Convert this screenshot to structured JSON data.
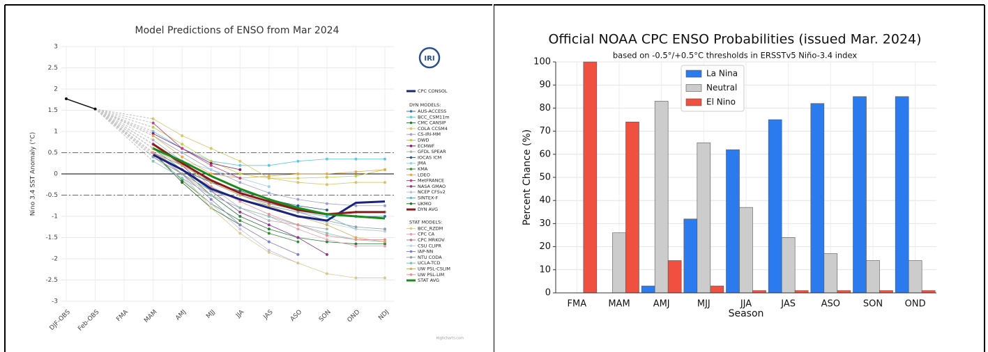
{
  "chart_data": [
    {
      "type": "line",
      "title": "Model Predictions of ENSO from Mar 2024",
      "y_label": "Nino 3.4 SST Anomaly (°C)",
      "logo": "IRI",
      "credit": "Highcharts.com",
      "categories": [
        "DJF-OBS",
        "Feb-OBS",
        "FMA",
        "MAM",
        "AMJ",
        "MJJ",
        "JJA",
        "JAS",
        "ASO",
        "SON",
        "OND",
        "NDJ"
      ],
      "ylim": [
        -3,
        3
      ],
      "yticks": [
        -3,
        -2.5,
        -2,
        -1.5,
        -1,
        -0.5,
        0,
        0.5,
        1,
        1.5,
        2,
        2.5,
        3
      ],
      "grid": true,
      "hlines": [
        {
          "value": 0,
          "style": "solid"
        },
        {
          "value": 0.5,
          "style": "dashdot"
        },
        {
          "value": -0.5,
          "style": "dashdot"
        }
      ],
      "observed": {
        "color": "#111111",
        "values": [
          1.77,
          1.53,
          null,
          null,
          null,
          null,
          null,
          null,
          null,
          null,
          null,
          null
        ]
      },
      "series": [
        {
          "name": "CPC CONSOL",
          "color": "#1a237e",
          "emphasis": true,
          "values": [
            null,
            null,
            null,
            0.45,
            0.1,
            -0.35,
            -0.6,
            -0.8,
            -1.0,
            -1.1,
            -0.68,
            -0.65
          ]
        }
      ],
      "groups": [
        {
          "title": "DYN MODELS:",
          "series": [
            {
              "name": "AUS-ACCESS",
              "color": "#3a6fb0",
              "values": [
                null,
                null,
                null,
                0.7,
                0.3,
                -0.2,
                -0.5,
                -0.7,
                -0.85,
                -0.95,
                -1.0,
                -1.0
              ]
            },
            {
              "name": "BCC_CSM11m",
              "color": "#5bc8e8",
              "values": [
                null,
                null,
                null,
                1.0,
                0.6,
                0.3,
                0.2,
                0.2,
                0.3,
                0.35,
                0.35,
                0.35
              ]
            },
            {
              "name": "CMC CANSIP",
              "color": "#2a7a3a",
              "values": [
                null,
                null,
                null,
                0.6,
                0.1,
                -0.5,
                -1.0,
                -1.3,
                -1.5,
                -1.6,
                -1.65,
                -1.65
              ]
            },
            {
              "name": "COLA CCSM4",
              "color": "#d8c36a",
              "values": [
                null,
                null,
                null,
                1.3,
                0.9,
                0.6,
                0.3,
                -0.1,
                -0.2,
                -0.25,
                -0.2,
                -0.2
              ]
            },
            {
              "name": "CS-IRI-MM",
              "color": "#a0a0d0",
              "values": [
                null,
                null,
                null,
                0.9,
                0.5,
                0.1,
                -0.2,
                -0.45,
                -0.6,
                -0.7,
                -0.75,
                -0.75
              ]
            },
            {
              "name": "DWD",
              "color": "#c8c84a",
              "values": [
                null,
                null,
                null,
                1.1,
                0.7,
                0.3,
                0.0,
                -0.1,
                -0.1,
                -0.08,
                -0.05,
                0.1
              ]
            },
            {
              "name": "ECMWF",
              "color": "#8b1a6b",
              "values": [
                null,
                null,
                null,
                0.95,
                0.6,
                0.25,
                0.1,
                null,
                null,
                null,
                null,
                null
              ]
            },
            {
              "name": "GFDL SPEAR",
              "color": "#b0b0b0",
              "values": [
                null,
                null,
                null,
                0.8,
                0.3,
                -0.3,
                -0.8,
                -1.1,
                -1.2,
                -1.3,
                null,
                null
              ]
            },
            {
              "name": "IOCAS ICM",
              "color": "#2a5a8a",
              "values": [
                null,
                null,
                null,
                0.5,
                0.1,
                -0.2,
                -0.4,
                -0.6,
                -0.75,
                -0.85,
                null,
                null
              ]
            },
            {
              "name": "JMA",
              "color": "#9ad0e8",
              "values": [
                null,
                null,
                null,
                0.7,
                0.3,
                0.1,
                -0.1,
                -0.3,
                null,
                null,
                null,
                null
              ]
            },
            {
              "name": "KMA",
              "color": "#3a8a3a",
              "values": [
                null,
                null,
                null,
                0.5,
                -0.15,
                -0.7,
                -1.1,
                -1.4,
                -1.6,
                null,
                null,
                null
              ]
            },
            {
              "name": "LDEO",
              "color": "#e8a850",
              "values": [
                null,
                null,
                null,
                0.9,
                0.4,
                0.0,
                -0.1,
                -0.05,
                0.0,
                0.0,
                0.05,
                0.1
              ]
            },
            {
              "name": "MetFRANCE",
              "color": "#c04080",
              "values": [
                null,
                null,
                null,
                1.2,
                0.6,
                0.2,
                -0.1,
                null,
                null,
                null,
                null,
                null
              ]
            },
            {
              "name": "NASA GMAO",
              "color": "#8a3a8a",
              "values": [
                null,
                null,
                null,
                0.7,
                0.2,
                -0.4,
                -0.9,
                -1.2,
                -1.5,
                -1.9,
                null,
                null
              ]
            },
            {
              "name": "NCEP CFSv2",
              "color": "#c0c0e0",
              "values": [
                null,
                null,
                null,
                0.4,
                -0.1,
                -0.7,
                -1.3,
                -1.8,
                -2.1,
                null,
                null,
                null
              ]
            },
            {
              "name": "SINTEX-F",
              "color": "#5ab8d8",
              "values": [
                null,
                null,
                null,
                0.6,
                0.1,
                -0.4,
                -0.6,
                -0.75,
                -0.9,
                -1.0,
                -1.3,
                -1.35
              ]
            },
            {
              "name": "UKMO",
              "color": "#2a6a2a",
              "values": [
                null,
                null,
                null,
                0.5,
                -0.2,
                -0.8,
                -1.2,
                null,
                null,
                null,
                null,
                null
              ]
            },
            {
              "name": "DYN AVG",
              "color": "#8b1a1a",
              "emphasis": true,
              "values": [
                null,
                null,
                null,
                0.7,
                0.25,
                -0.15,
                -0.45,
                -0.65,
                -0.85,
                -0.95,
                -0.9,
                -0.9
              ]
            }
          ]
        },
        {
          "title": "STAT MODELS:",
          "series": [
            {
              "name": "BCC_RZDM",
              "color": "#d8c890",
              "values": [
                null,
                null,
                null,
                0.6,
                0.0,
                -0.8,
                -1.4,
                -1.85,
                -2.1,
                -2.35,
                -2.45,
                -2.45
              ]
            },
            {
              "name": "CPC CA",
              "color": "#e8a0b0",
              "values": [
                null,
                null,
                null,
                0.4,
                0.0,
                -0.5,
                -0.8,
                -1.0,
                -1.3,
                -1.55,
                -1.7,
                -1.7
              ]
            },
            {
              "name": "CPC MRKOV",
              "color": "#a08080",
              "values": [
                null,
                null,
                null,
                0.5,
                0.2,
                -0.2,
                -0.5,
                -0.7,
                -0.85,
                -0.95,
                -0.9,
                -0.9
              ]
            },
            {
              "name": "CSU CLIPR",
              "color": "#c0d0e0",
              "values": [
                null,
                null,
                null,
                0.5,
                0.1,
                -0.3,
                -0.6,
                -0.8,
                -1.0,
                -1.15,
                -1.3,
                -1.35
              ]
            },
            {
              "name": "IAP-NN",
              "color": "#8080c0",
              "values": [
                null,
                null,
                null,
                0.5,
                0.0,
                -0.6,
                -1.2,
                -1.6,
                -1.9,
                null,
                null,
                null
              ]
            },
            {
              "name": "NTU CODA",
              "color": "#90a0a0",
              "values": [
                null,
                null,
                null,
                0.4,
                0.0,
                -0.4,
                -0.6,
                -0.75,
                -0.9,
                -1.1,
                -1.25,
                -1.3
              ]
            },
            {
              "name": "UCLA-TCD",
              "color": "#80c0c0",
              "values": [
                null,
                null,
                null,
                0.3,
                -0.1,
                -0.5,
                -0.8,
                -1.0,
                -1.2,
                -1.4,
                -1.55,
                -1.6
              ]
            },
            {
              "name": "UW PSL-CSLIM",
              "color": "#d0b060",
              "values": [
                null,
                null,
                null,
                0.6,
                0.2,
                -0.2,
                -0.5,
                -0.75,
                -1.0,
                -1.2,
                -1.5,
                -1.6
              ]
            },
            {
              "name": "UW PSL-LIM",
              "color": "#e89090",
              "values": [
                null,
                null,
                null,
                0.5,
                0.1,
                -0.3,
                -0.65,
                -0.95,
                -1.2,
                -1.45,
                -1.55,
                -1.55
              ]
            },
            {
              "name": "STAT AVG",
              "color": "#1a8a1a",
              "emphasis": true,
              "values": [
                null,
                null,
                null,
                0.6,
                0.3,
                -0.05,
                -0.35,
                -0.6,
                -0.8,
                -0.95,
                -1.0,
                -1.05
              ]
            }
          ]
        }
      ]
    },
    {
      "type": "bar",
      "title": "Official NOAA CPC ENSO Probabilities (issued Mar. 2024)",
      "subtitle": "based on -0.5°/+0.5°C thresholds in ERSSTv5 Niño-3.4 index",
      "x_label": "Season",
      "y_label": "Percent Chance (%)",
      "categories": [
        "FMA",
        "MAM",
        "AMJ",
        "MJJ",
        "JJA",
        "JAS",
        "ASO",
        "SON",
        "OND"
      ],
      "ylim": [
        0,
        100
      ],
      "yticks": [
        0,
        10,
        20,
        30,
        40,
        50,
        60,
        70,
        80,
        90,
        100
      ],
      "grid": true,
      "legend_loc": "upper center",
      "series": [
        {
          "name": "La Nina",
          "color": "#2b7bef",
          "values": [
            0,
            0,
            3,
            32,
            62,
            75,
            82,
            85,
            85
          ]
        },
        {
          "name": "Neutral",
          "color": "#cccccc",
          "values": [
            0,
            26,
            83,
            65,
            37,
            24,
            17,
            14,
            14
          ]
        },
        {
          "name": "El Nino",
          "color": "#f05040",
          "values": [
            100,
            74,
            14,
            3,
            1,
            1,
            1,
            1,
            1
          ]
        }
      ]
    }
  ]
}
